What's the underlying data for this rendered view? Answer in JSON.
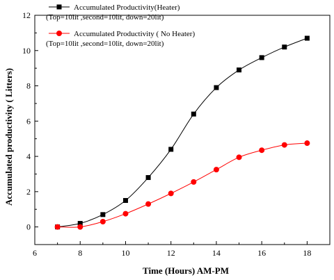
{
  "chart_data": {
    "type": "line",
    "title": "",
    "xlabel": "Time (Hours) AM-PM",
    "ylabel": "Accumulated productivity ( Litters)",
    "xlim": [
      6,
      19
    ],
    "ylim": [
      -1,
      12
    ],
    "xticks": [
      6,
      8,
      10,
      12,
      14,
      16,
      18
    ],
    "yticks": [
      0,
      2,
      4,
      6,
      8,
      10,
      12
    ],
    "x": [
      7,
      8,
      9,
      10,
      11,
      12,
      13,
      14,
      15,
      16,
      17,
      18
    ],
    "grid": false,
    "legend_position": "top-left",
    "series": [
      {
        "name": "Accumulated Productivity(Heater)",
        "subtitle": "(Top=10lit ,second=10lit, down=20lit)",
        "marker": "square",
        "color": "#000000",
        "values": [
          0,
          0.2,
          0.7,
          1.5,
          2.8,
          4.4,
          6.4,
          7.9,
          8.9,
          9.6,
          10.2,
          10.7
        ]
      },
      {
        "name": "Accumulated Productivity ( No Heater)",
        "subtitle": "(Top=10lit ,second=10lit, down=20lit)",
        "marker": "circle",
        "color": "#ff0000",
        "values": [
          0,
          0.0,
          0.3,
          0.75,
          1.3,
          1.9,
          2.55,
          3.25,
          3.95,
          4.35,
          4.65,
          4.75
        ]
      }
    ]
  }
}
